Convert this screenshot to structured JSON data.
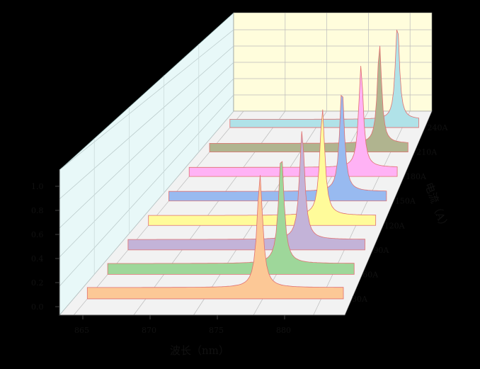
{
  "chart_data": {
    "type": "3d-waterfall",
    "title": "",
    "xlabel": "波长（nm）",
    "ylabel": "",
    "zlabel": "电流（A）",
    "x_ticks": [
      865,
      870,
      875,
      880
    ],
    "y_ticks": [
      "0.0",
      "0.2",
      "0.4",
      "0.6",
      "0.8",
      "1.0"
    ],
    "ylim": [
      0,
      1.0
    ],
    "grid": true,
    "series": [
      {
        "name": "30A",
        "peak_wavelength": 879.5,
        "peak_height": 0.62,
        "color": "#FCC896"
      },
      {
        "name": "60A",
        "peak_wavelength": 880.0,
        "peak_height": 0.66,
        "color": "#9ED79A"
      },
      {
        "name": "90A",
        "peak_wavelength": 880.4,
        "peak_height": 0.7,
        "color": "#C3B3D8"
      },
      {
        "name": "120A",
        "peak_wavelength": 880.8,
        "peak_height": 0.74,
        "color": "#FFFB9A"
      },
      {
        "name": "150A",
        "peak_wavelength": 881.2,
        "peak_height": 0.78,
        "color": "#98BAF0"
      },
      {
        "name": "180A",
        "peak_wavelength": 881.6,
        "peak_height": 0.82,
        "color": "#FFB2F5"
      },
      {
        "name": "210A",
        "peak_wavelength": 882.0,
        "peak_height": 0.86,
        "color": "#B0B48F"
      },
      {
        "name": "240A",
        "peak_wavelength": 882.4,
        "peak_height": 0.9,
        "color": "#B0E2E8"
      }
    ],
    "walls": {
      "back": "#FFFDDC",
      "left": "#E8F8F8",
      "floor": "#F2F2F2"
    }
  },
  "labels": {
    "x_title": "波长（nm）",
    "z_title": "电流（A）",
    "x": [
      "865",
      "870",
      "875",
      "880"
    ],
    "y": [
      "1.0",
      "0.8",
      "0.6",
      "0.4",
      "0.2",
      "0.0"
    ],
    "z": [
      "30A",
      "60A",
      "90A",
      "120A",
      "150A",
      "180A",
      "210A",
      "240A"
    ]
  }
}
